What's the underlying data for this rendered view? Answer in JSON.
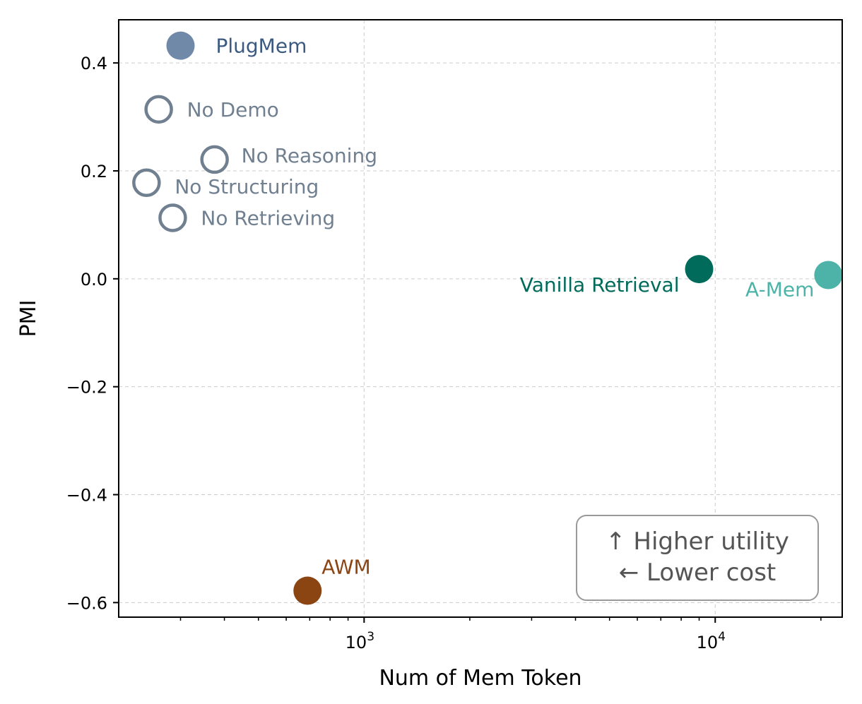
{
  "chart_data": {
    "type": "scatter",
    "xlabel": "Num of Mem Token",
    "ylabel": "PMI",
    "xscale": "log",
    "xlim": [
      200,
      23000
    ],
    "ylim": [
      -0.627,
      0.48
    ],
    "grid": true,
    "x_ticks": [
      {
        "value": 1000,
        "label": "10",
        "exp": "3"
      },
      {
        "value": 10000,
        "label": "10",
        "exp": "4"
      }
    ],
    "y_ticks": [
      {
        "value": 0.4,
        "label": "0.4"
      },
      {
        "value": 0.2,
        "label": "0.2"
      },
      {
        "value": 0.0,
        "label": "0.0"
      },
      {
        "value": -0.2,
        "label": "−0.2"
      },
      {
        "value": -0.4,
        "label": "−0.4"
      },
      {
        "value": -0.6,
        "label": "−0.6"
      }
    ],
    "points": [
      {
        "name": "PlugMem",
        "x": 300,
        "y": 0.432,
        "color": "#7089a8",
        "label_color": "#3c5a80",
        "filled": true
      },
      {
        "name": "No Demo",
        "x": 260,
        "y": 0.314,
        "color": "#708090",
        "label_color": "#708090",
        "filled": false
      },
      {
        "name": "No Reasoning",
        "x": 375,
        "y": 0.221,
        "color": "#708090",
        "label_color": "#708090",
        "filled": false
      },
      {
        "name": "No Structuring",
        "x": 240,
        "y": 0.178,
        "color": "#708090",
        "label_color": "#708090",
        "filled": false
      },
      {
        "name": "No Retrieving",
        "x": 285,
        "y": 0.113,
        "color": "#708090",
        "label_color": "#708090",
        "filled": false
      },
      {
        "name": "Vanilla Retrieval",
        "x": 9000,
        "y": 0.018,
        "color": "#006b5a",
        "label_color": "#006b5a",
        "filled": true
      },
      {
        "name": "A-Mem",
        "x": 21000,
        "y": 0.007,
        "color": "#4db3a8",
        "label_color": "#4db3a8",
        "filled": true
      },
      {
        "name": "AWM",
        "x": 690,
        "y": -0.578,
        "color": "#8b4513",
        "label_color": "#8b4513",
        "filled": true
      }
    ],
    "annotation": {
      "lines": [
        "↑ Higher utility",
        "← Lower cost"
      ],
      "placement": "bottom-right"
    }
  }
}
